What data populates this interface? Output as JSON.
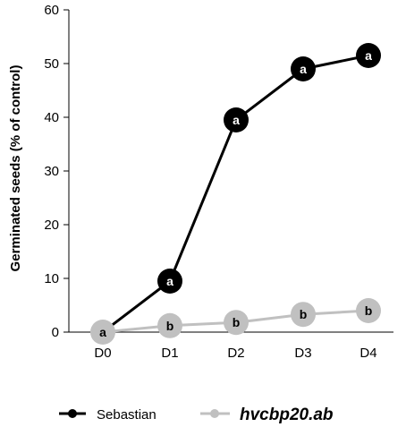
{
  "chart_data": {
    "type": "line",
    "ylabel": "Germinated seeds (% of control)",
    "xlabel": "",
    "categories": [
      "D0",
      "D1",
      "D2",
      "D3",
      "D4"
    ],
    "ylim": [
      0,
      60
    ],
    "yticks": [
      "0",
      "10",
      "20",
      "30",
      "40",
      "50",
      "60"
    ],
    "grid": false,
    "legend_position": "bottom",
    "series": [
      {
        "name": "Sebastian",
        "color": "#000000",
        "label_color": "#ffffff",
        "values": [
          0,
          9.5,
          39.5,
          49,
          51.5
        ],
        "point_labels": [
          "a",
          "a",
          "a",
          "a",
          "a"
        ]
      },
      {
        "name": "hvcbp20.ab",
        "color": "#c0c0c0",
        "label_color": "#000000",
        "values": [
          0,
          1.2,
          1.8,
          3.3,
          4
        ],
        "point_labels": [
          "a",
          "b",
          "b",
          "b",
          "b"
        ]
      }
    ]
  }
}
